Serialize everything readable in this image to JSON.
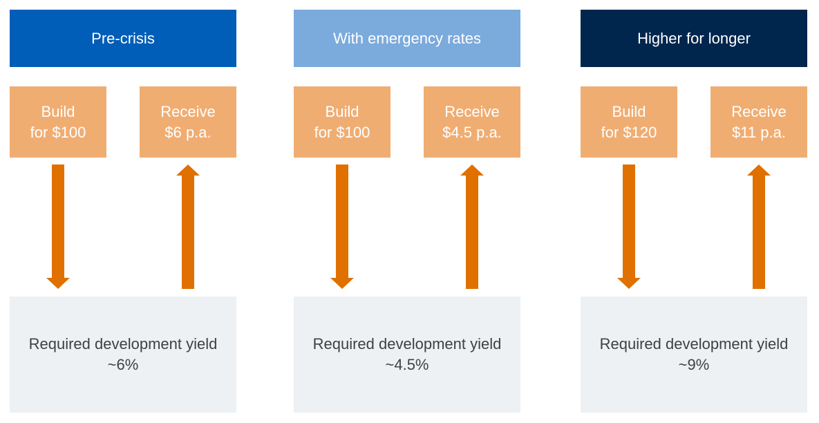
{
  "columns": [
    {
      "title": "Pre-crisis",
      "build": [
        "Build",
        "for $100"
      ],
      "receive": [
        "Receive",
        "$6 p.a."
      ],
      "result": [
        "Required development yield",
        "~6%"
      ]
    },
    {
      "title": "With emergency rates",
      "build": [
        "Build",
        "for $100"
      ],
      "receive": [
        "Receive",
        "$4.5 p.a."
      ],
      "result": [
        "Required development yield",
        "~4.5%"
      ]
    },
    {
      "title": "Higher for longer",
      "build": [
        "Build",
        "for $120"
      ],
      "receive": [
        "Receive",
        "$11 p.a."
      ],
      "result": [
        "Required development yield",
        "~9%"
      ]
    }
  ]
}
